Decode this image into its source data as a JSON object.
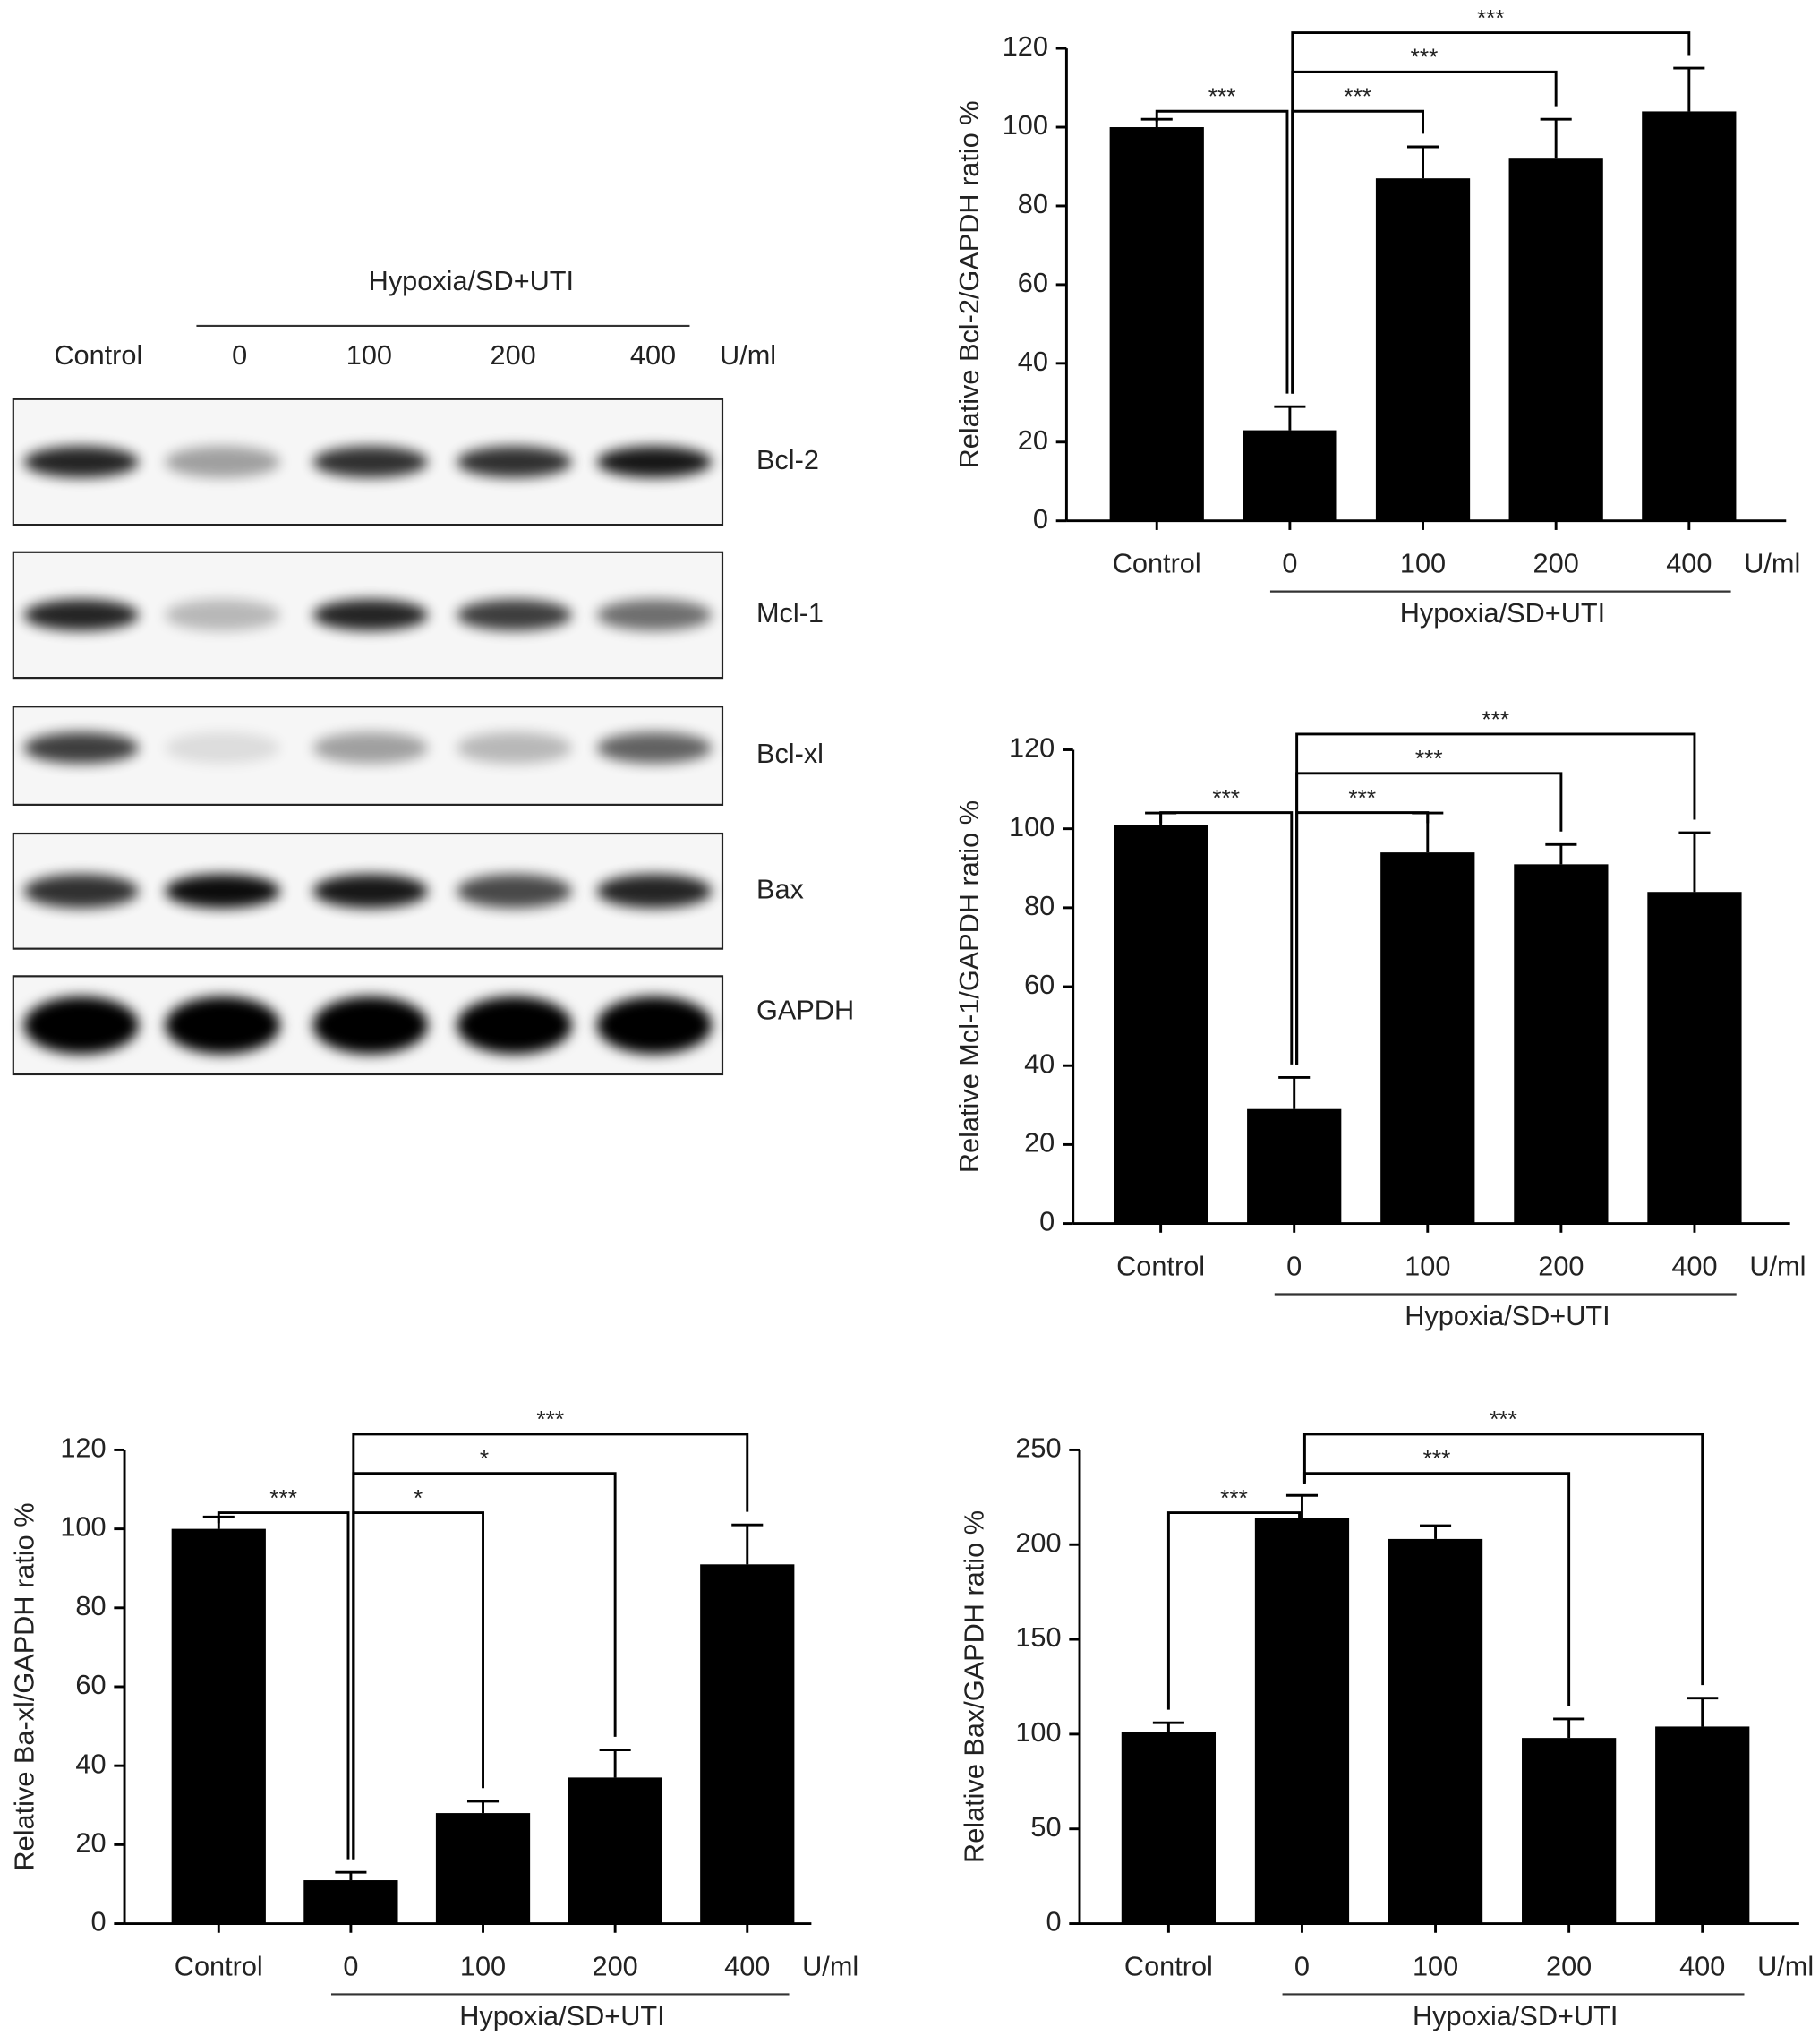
{
  "blot": {
    "group_label": "Hypoxia/SD+UTI",
    "lanes": [
      "Control",
      "0",
      "100",
      "200",
      "400"
    ],
    "unit": "U/ml",
    "proteins": [
      "Bcl-2",
      "Mcl-1",
      "Bcl-xl",
      "Bax",
      "GAPDH"
    ]
  },
  "chart_data": [
    {
      "type": "bar",
      "y_label": "Relative Bcl-2/GAPDH ratio %",
      "categories": [
        "Control",
        "0",
        "100",
        "200",
        "400"
      ],
      "unit": "U/ml",
      "group_label": "Hypoxia/SD+UTI",
      "values": [
        100,
        23,
        87,
        92,
        104
      ],
      "errors": [
        2,
        6,
        8,
        10,
        11
      ],
      "color": "#000000",
      "ylim": [
        0,
        120
      ],
      "yticks": [
        0,
        20,
        40,
        60,
        80,
        100,
        120
      ],
      "annotations": [
        {
          "label": "***",
          "from": "Control",
          "to": "0"
        },
        {
          "label": "***",
          "from": "0",
          "to": "100"
        },
        {
          "label": "***",
          "from": "0",
          "to": "200"
        },
        {
          "label": "***",
          "from": "0",
          "to": "400"
        }
      ]
    },
    {
      "type": "bar",
      "y_label": "Relative Mcl-1/GAPDH ratio %",
      "categories": [
        "Control",
        "0",
        "100",
        "200",
        "400"
      ],
      "unit": "U/ml",
      "group_label": "Hypoxia/SD+UTI",
      "values": [
        101,
        29,
        94,
        91,
        84
      ],
      "errors": [
        3,
        8,
        10,
        5,
        15
      ],
      "color": "#000000",
      "ylim": [
        0,
        120
      ],
      "yticks": [
        0,
        20,
        40,
        60,
        80,
        100,
        120
      ],
      "annotations": [
        {
          "label": "***",
          "from": "Control",
          "to": "0"
        },
        {
          "label": "***",
          "from": "0",
          "to": "100"
        },
        {
          "label": "***",
          "from": "0",
          "to": "200"
        },
        {
          "label": "***",
          "from": "0",
          "to": "400"
        }
      ]
    },
    {
      "type": "bar",
      "y_label": "Relative Ba-xl/GAPDH ratio %",
      "categories": [
        "Control",
        "0",
        "100",
        "200",
        "400"
      ],
      "unit": "U/ml",
      "group_label": "Hypoxia/SD+UTI",
      "values": [
        100,
        11,
        28,
        37,
        91
      ],
      "errors": [
        3,
        2,
        3,
        7,
        10
      ],
      "color": "#000000",
      "ylim": [
        0,
        120
      ],
      "yticks": [
        0,
        20,
        40,
        60,
        80,
        100,
        120
      ],
      "annotations": [
        {
          "label": "***",
          "from": "Control",
          "to": "0"
        },
        {
          "label": "*",
          "from": "0",
          "to": "100"
        },
        {
          "label": "*",
          "from": "0",
          "to": "200"
        },
        {
          "label": "***",
          "from": "0",
          "to": "400"
        }
      ]
    },
    {
      "type": "bar",
      "y_label": "Relative Bax/GAPDH ratio %",
      "categories": [
        "Control",
        "0",
        "100",
        "200",
        "400"
      ],
      "unit": "U/ml",
      "group_label": "Hypoxia/SD+UTI",
      "values": [
        101,
        214,
        203,
        98,
        104
      ],
      "errors": [
        5,
        12,
        7,
        10,
        15
      ],
      "color": "#000000",
      "ylim": [
        0,
        250
      ],
      "yticks": [
        0,
        50,
        100,
        150,
        200,
        250
      ],
      "annotations": [
        {
          "label": "***",
          "from": "Control",
          "to": "0"
        },
        {
          "label": "***",
          "from": "0",
          "to": "200"
        },
        {
          "label": "***",
          "from": "0",
          "to": "400"
        }
      ]
    }
  ]
}
